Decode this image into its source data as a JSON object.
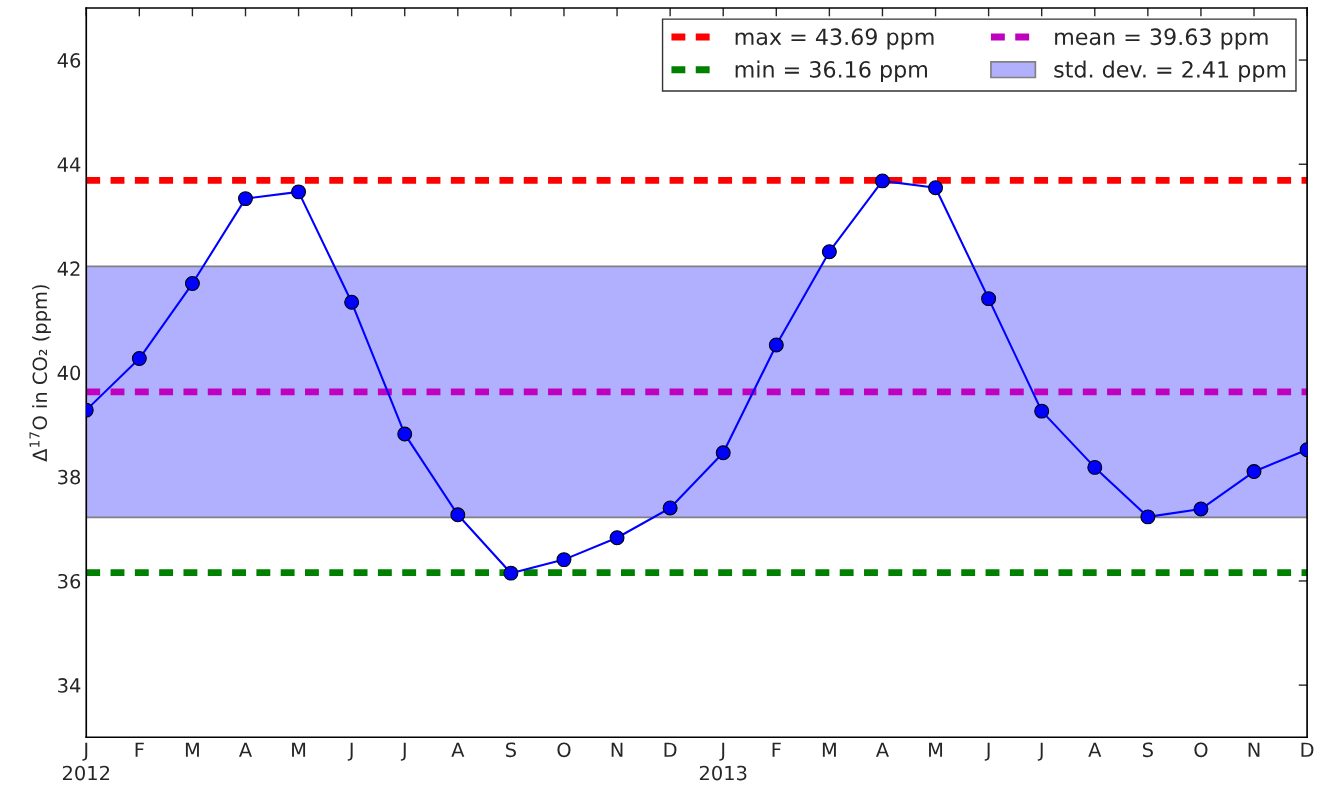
{
  "chart_data": {
    "type": "line",
    "ylabel": "Δ$^{17}$O in CO₂ (ppm)",
    "categories": [
      "J\n2012",
      "F",
      "M",
      "A",
      "M",
      "J",
      "J",
      "A",
      "S",
      "O",
      "N",
      "D",
      "J\n2013",
      "F",
      "M",
      "A",
      "M",
      "J",
      "J",
      "A",
      "S",
      "O",
      "N",
      "D"
    ],
    "series": [
      {
        "color": "#0000ff",
        "values": [
          39.28,
          40.27,
          41.71,
          43.34,
          43.47,
          41.35,
          38.82,
          37.27,
          36.15,
          36.41,
          36.83,
          37.4,
          38.46,
          40.53,
          42.32,
          43.68,
          43.55,
          41.42,
          39.26,
          38.18,
          37.23,
          37.38,
          38.1,
          38.52
        ]
      }
    ],
    "ylim": [
      33,
      47
    ],
    "yticks": [
      34,
      36,
      38,
      40,
      42,
      44,
      46
    ],
    "ref_lines": [
      {
        "axis": "y",
        "value": 43.69,
        "label": "max = 43.69 ppm",
        "color": "#ff0000",
        "line_style": "dashed"
      },
      {
        "axis": "y",
        "value": 36.16,
        "label": "min = 36.16 ppm",
        "color": "#008000",
        "line_style": "dashed"
      },
      {
        "axis": "y",
        "value": 39.63,
        "label": "mean = 39.63 ppm",
        "color": "#bf00bf",
        "line_style": "dashed"
      }
    ],
    "bands": [
      {
        "axis": "y",
        "from": 37.22,
        "to": 42.04,
        "label": "std. dev. = 2.41 ppm",
        "color": "#b0b0ff"
      }
    ],
    "marker": "circle",
    "line_style": "solid",
    "grid": false,
    "legend": "top right"
  }
}
